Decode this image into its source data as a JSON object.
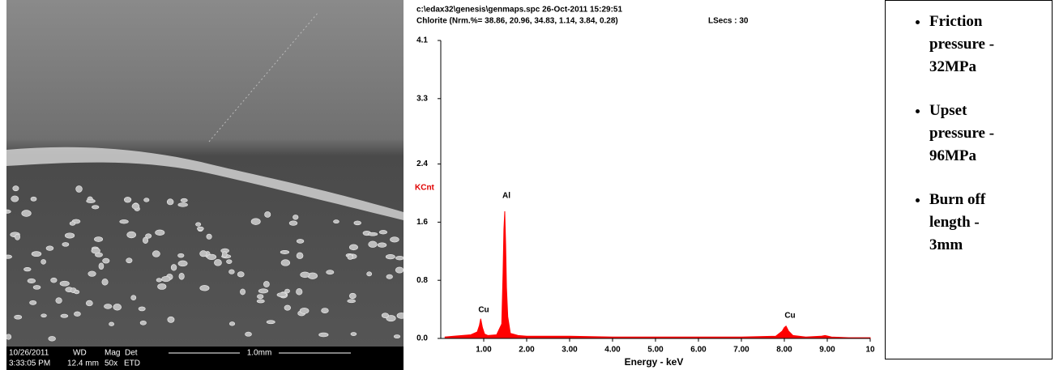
{
  "image_panel": {
    "date": "10/26/2011",
    "time": "3:33:05 PM",
    "headers": [
      "WD",
      "Mag",
      "Det"
    ],
    "values": [
      "12.4 mm",
      "50x",
      "ETD"
    ],
    "scale": "1.0mm"
  },
  "chart_data": {
    "type": "area",
    "header": "c:\\edax32\\genesis\\genmaps.spc  26-Oct-2011 15:29:51",
    "subtitle": "Chlorite (Nrm.%= 38.86, 20.96, 34.83, 1.14, 3.84, 0.28)",
    "live_time": "LSecs : 30",
    "y_label": "KCnt",
    "x_label": "Energy - keV",
    "annotations": [
      "Cu",
      "Al",
      "Cu"
    ],
    "color": "#ff0000",
    "x": [
      0.1,
      0.3,
      0.5,
      0.7,
      0.85,
      0.9,
      0.93,
      0.97,
      1.02,
      1.1,
      1.3,
      1.42,
      1.45,
      1.47,
      1.49,
      1.51,
      1.53,
      1.56,
      1.62,
      1.8,
      2.0,
      3,
      4,
      5,
      6,
      7,
      7.8,
      7.95,
      8.0,
      8.04,
      8.1,
      8.2,
      8.5,
      8.85,
      8.95,
      9.1,
      9.5,
      10
    ],
    "values": [
      0.02,
      0.03,
      0.04,
      0.05,
      0.09,
      0.18,
      0.27,
      0.15,
      0.06,
      0.04,
      0.05,
      0.2,
      0.9,
      1.5,
      1.75,
      1.3,
      0.7,
      0.3,
      0.07,
      0.04,
      0.03,
      0.03,
      0.02,
      0.02,
      0.02,
      0.02,
      0.03,
      0.1,
      0.15,
      0.17,
      0.1,
      0.04,
      0.02,
      0.03,
      0.04,
      0.02,
      0.01,
      0.01
    ],
    "xlim": [
      0,
      10
    ],
    "xticks": [
      {
        "value": 1,
        "label": "1.00"
      },
      {
        "value": 2,
        "label": "2.00"
      },
      {
        "value": 3,
        "label": "3.00"
      },
      {
        "value": 4,
        "label": "4.00"
      },
      {
        "value": 5,
        "label": "5.00"
      },
      {
        "value": 6,
        "label": "6.00"
      },
      {
        "value": 7,
        "label": "7.00"
      },
      {
        "value": 8,
        "label": "8.00"
      },
      {
        "value": 9,
        "label": "9.00"
      },
      10
    ],
    "ylim": [
      0,
      4.1
    ],
    "yticks": [
      {
        "value": 0,
        "label": "0.0"
      },
      0.8,
      1.6,
      2.4,
      3.3,
      4.1
    ]
  },
  "notes": [
    "Friction pressure - 32MPa",
    "Upset pressure - 96MPa",
    "Burn off length - 3mm"
  ]
}
